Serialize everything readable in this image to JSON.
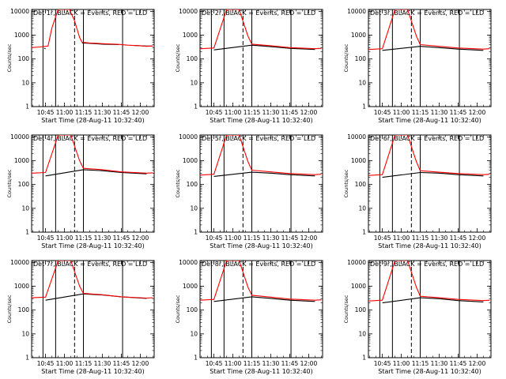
{
  "chart_data": [
    {
      "type": "line",
      "title": "Det 1r, BLACK = Events, RED = LLD",
      "xlabel": "Start Time (28-Aug-11 10:32:40)",
      "ylabel": "Counts/sec",
      "yscale": "log",
      "ylim": [
        1,
        12000
      ],
      "xlim": [
        "10:34",
        "12:11"
      ],
      "x_ticks": [
        "10:45",
        "11:00",
        "11:15",
        "11:30",
        "11:45",
        "12:00"
      ],
      "y_ticks": [
        "1",
        "10",
        "100",
        "1000",
        "10000"
      ],
      "series": [
        {
          "color": "#000000",
          "x": [
            "10:40",
            "10:44",
            "10:45",
            "10:45.6",
            "10:47",
            "10:48",
            "10:55",
            "11:03",
            "11:04",
            "11:12",
            "11:14",
            "11:18",
            "11:30",
            "11:43",
            "11:44",
            "11:55",
            "12:05",
            "12:10"
          ],
          "y": [
            null,
            280,
            270,
            null,
            null,
            1200,
            null,
            null,
            12000,
            null,
            470,
            460,
            420,
            400,
            null,
            370,
            350,
            350
          ]
        },
        {
          "color": "#ff0000",
          "x": [
            "10:34",
            "10:40",
            "10:45",
            "10:47",
            "10:50",
            "10:55",
            "11:00",
            "11:04",
            "11:08",
            "11:12",
            "11:14",
            "11:20",
            "11:30",
            "11:43",
            "11:50",
            "12:00",
            "12:05",
            "12:10"
          ],
          "y": [
            300,
            320,
            340,
            350,
            2000,
            12000,
            12000,
            12000,
            4000,
            800,
            500,
            470,
            440,
            410,
            380,
            360,
            340,
            350
          ]
        }
      ],
      "markers": {
        "solid_vlines": [
          "10:43",
          "10:53",
          "11:15",
          "11:46"
        ],
        "dashed_vlines": [
          "11:08"
        ],
        "gaps": [
          [
            "10:45",
            "10:47"
          ],
          [
            "10:55",
            "11:03"
          ],
          [
            "11:12",
            "11:14"
          ],
          [
            "11:44",
            "11:46"
          ]
        ]
      }
    },
    {
      "type": "line",
      "title": "Det 2r, BLACK = Events, RED = LLD",
      "xlabel": "Start Time (28-Aug-11 10:32:40)",
      "ylabel": "Counts/sec",
      "yscale": "log",
      "ylim": [
        1,
        12000
      ],
      "xlim": [
        "10:34",
        "12:11"
      ],
      "x_ticks": [
        "10:45",
        "11:00",
        "11:15",
        "11:30",
        "11:45",
        "12:00"
      ],
      "y_ticks": [
        "1",
        "10",
        "100",
        "1000",
        "10000"
      ],
      "series": [
        {
          "color": "#000000",
          "x": [
            "10:45",
            "11:15",
            "11:30",
            "11:45",
            "12:05"
          ],
          "y": [
            240,
            380,
            330,
            280,
            250
          ]
        },
        {
          "color": "#ff0000",
          "x": [
            "10:34",
            "10:45",
            "10:55",
            "11:05",
            "11:12",
            "11:15",
            "11:30",
            "11:45",
            "12:05",
            "12:10"
          ],
          "y": [
            270,
            290,
            12000,
            12000,
            900,
            420,
            360,
            300,
            270,
            280
          ]
        }
      ],
      "markers": {
        "solid_vlines": [
          "10:43",
          "10:53",
          "11:15",
          "11:46"
        ],
        "dashed_vlines": [
          "11:08"
        ]
      }
    },
    {
      "type": "line",
      "title": "Det 3r, BLACK = Events, RED = LLD",
      "xlabel": "Start Time (28-Aug-11 10:32:40)",
      "ylabel": "Counts/sec",
      "yscale": "log",
      "ylim": [
        1,
        12000
      ],
      "xlim": [
        "10:34",
        "12:11"
      ],
      "x_ticks": [
        "10:45",
        "11:00",
        "11:15",
        "11:30",
        "11:45",
        "12:00"
      ],
      "y_ticks": [
        "1",
        "10",
        "100",
        "1000",
        "10000"
      ],
      "series": [
        {
          "color": "#000000",
          "x": [
            "10:45",
            "11:15",
            "11:30",
            "11:45",
            "12:05"
          ],
          "y": [
            230,
            340,
            300,
            260,
            230
          ]
        },
        {
          "color": "#ff0000",
          "x": [
            "10:34",
            "10:45",
            "10:55",
            "11:05",
            "11:12",
            "11:15",
            "11:30",
            "11:45",
            "12:05",
            "12:10"
          ],
          "y": [
            250,
            270,
            12000,
            12000,
            900,
            400,
            340,
            290,
            260,
            270
          ]
        }
      ],
      "markers": {
        "solid_vlines": [
          "10:43",
          "10:53",
          "11:15",
          "11:46"
        ],
        "dashed_vlines": [
          "11:08"
        ]
      }
    },
    {
      "type": "line",
      "title": "Det 4r, BLACK = Events, RED = LLD",
      "xlabel": "Start Time (28-Aug-11 10:32:40)",
      "ylabel": "Counts/sec",
      "yscale": "log",
      "ylim": [
        1,
        12000
      ],
      "xlim": [
        "10:34",
        "12:11"
      ],
      "x_ticks": [
        "10:45",
        "11:00",
        "11:15",
        "11:30",
        "11:45",
        "12:00"
      ],
      "y_ticks": [
        "1",
        "10",
        "100",
        "1000",
        "10000"
      ],
      "series": [
        {
          "color": "#000000",
          "x": [
            "10:45",
            "11:15",
            "11:30",
            "11:45",
            "12:05"
          ],
          "y": [
            230,
            420,
            380,
            320,
            280
          ]
        },
        {
          "color": "#ff0000",
          "x": [
            "10:34",
            "10:45",
            "10:55",
            "11:05",
            "11:12",
            "11:15",
            "11:30",
            "11:45",
            "12:05",
            "12:10"
          ],
          "y": [
            300,
            320,
            12000,
            12000,
            1000,
            480,
            420,
            340,
            300,
            310
          ]
        }
      ],
      "markers": {
        "solid_vlines": [
          "10:43",
          "10:53",
          "11:15",
          "11:46"
        ],
        "dashed_vlines": [
          "11:08"
        ]
      }
    },
    {
      "type": "line",
      "title": "Det 5r, BLACK = Events, RED = LLD",
      "xlabel": "Start Time (28-Aug-11 10:32:40)",
      "ylabel": "Counts/sec",
      "yscale": "log",
      "ylim": [
        1,
        12000
      ],
      "xlim": [
        "10:34",
        "12:11"
      ],
      "x_ticks": [
        "10:45",
        "11:00",
        "11:15",
        "11:30",
        "11:45",
        "12:00"
      ],
      "y_ticks": [
        "1",
        "10",
        "100",
        "1000",
        "10000"
      ],
      "series": [
        {
          "color": "#000000",
          "x": [
            "10:45",
            "11:15",
            "11:30",
            "11:45",
            "12:05"
          ],
          "y": [
            220,
            330,
            300,
            260,
            230
          ]
        },
        {
          "color": "#ff0000",
          "x": [
            "10:34",
            "10:45",
            "10:55",
            "11:05",
            "11:12",
            "11:15",
            "11:30",
            "11:45",
            "12:05",
            "12:10"
          ],
          "y": [
            250,
            270,
            12000,
            12000,
            900,
            400,
            340,
            290,
            260,
            270
          ]
        }
      ],
      "markers": {
        "solid_vlines": [
          "10:43",
          "10:53",
          "11:15",
          "11:46"
        ],
        "dashed_vlines": [
          "11:08"
        ]
      }
    },
    {
      "type": "line",
      "title": "Det 6r, BLACK = Events, RED = LLD",
      "xlabel": "Start Time (28-Aug-11 10:32:40)",
      "ylabel": "Counts/sec",
      "yscale": "log",
      "ylim": [
        1,
        12000
      ],
      "xlim": [
        "10:34",
        "12:11"
      ],
      "x_ticks": [
        "10:45",
        "11:00",
        "11:15",
        "11:30",
        "11:45",
        "12:00"
      ],
      "y_ticks": [
        "1",
        "10",
        "100",
        "1000",
        "10000"
      ],
      "series": [
        {
          "color": "#000000",
          "x": [
            "10:45",
            "11:15",
            "11:30",
            "11:45",
            "12:05"
          ],
          "y": [
            200,
            320,
            300,
            260,
            230
          ]
        },
        {
          "color": "#ff0000",
          "x": [
            "10:34",
            "10:45",
            "10:55",
            "11:05",
            "11:12",
            "11:15",
            "11:30",
            "11:45",
            "12:05",
            "12:10"
          ],
          "y": [
            240,
            260,
            12000,
            12000,
            900,
            380,
            330,
            290,
            260,
            270
          ]
        }
      ],
      "markers": {
        "solid_vlines": [
          "10:43",
          "10:53",
          "11:15",
          "11:46"
        ],
        "dashed_vlines": [
          "11:08"
        ]
      }
    },
    {
      "type": "line",
      "title": "Det 7r, BLACK = Events, RED = LLD",
      "xlabel": "Start Time (28-Aug-11 10:32:40)",
      "ylabel": "Counts/sec",
      "yscale": "log",
      "ylim": [
        1,
        12000
      ],
      "xlim": [
        "10:34",
        "12:11"
      ],
      "x_ticks": [
        "10:45",
        "11:00",
        "11:15",
        "11:30",
        "11:45",
        "12:00"
      ],
      "y_ticks": [
        "1",
        "10",
        "100",
        "1000",
        "10000"
      ],
      "series": [
        {
          "color": "#000000",
          "x": [
            "10:45",
            "11:15",
            "11:30",
            "11:45",
            "12:05"
          ],
          "y": [
            260,
            480,
            430,
            360,
            310
          ]
        },
        {
          "color": "#ff0000",
          "x": [
            "10:34",
            "10:45",
            "10:55",
            "11:05",
            "11:12",
            "11:15",
            "11:30",
            "11:45",
            "12:05",
            "12:10"
          ],
          "y": [
            330,
            350,
            12000,
            12000,
            1000,
            500,
            440,
            360,
            320,
            330
          ]
        }
      ],
      "markers": {
        "solid_vlines": [
          "10:43",
          "10:53",
          "11:15",
          "11:46"
        ],
        "dashed_vlines": [
          "11:08"
        ]
      }
    },
    {
      "type": "line",
      "title": "Det 8r, BLACK = Events, RED = LLD",
      "xlabel": "Start Time (28-Aug-11 10:32:40)",
      "ylabel": "Counts/sec",
      "yscale": "log",
      "ylim": [
        1,
        12000
      ],
      "xlim": [
        "10:34",
        "12:11"
      ],
      "x_ticks": [
        "10:45",
        "11:00",
        "11:15",
        "11:30",
        "11:45",
        "12:00"
      ],
      "y_ticks": [
        "1",
        "10",
        "100",
        "1000",
        "10000"
      ],
      "series": [
        {
          "color": "#000000",
          "x": [
            "10:45",
            "11:15",
            "11:30",
            "11:45",
            "12:05"
          ],
          "y": [
            230,
            360,
            310,
            260,
            230
          ]
        },
        {
          "color": "#ff0000",
          "x": [
            "10:34",
            "10:45",
            "10:55",
            "11:05",
            "11:12",
            "11:15",
            "11:30",
            "11:45",
            "12:05",
            "12:10"
          ],
          "y": [
            260,
            280,
            12000,
            12000,
            900,
            420,
            350,
            290,
            260,
            270
          ]
        }
      ],
      "markers": {
        "solid_vlines": [
          "10:43",
          "10:53",
          "11:15",
          "11:46"
        ],
        "dashed_vlines": [
          "11:08"
        ]
      }
    },
    {
      "type": "line",
      "title": "Det 9r, BLACK = Events, RED = LLD",
      "xlabel": "Start Time (28-Aug-11 10:32:40)",
      "ylabel": "Counts/sec",
      "yscale": "log",
      "ylim": [
        1,
        12000
      ],
      "xlim": [
        "10:34",
        "12:11"
      ],
      "x_ticks": [
        "10:45",
        "11:00",
        "11:15",
        "11:30",
        "11:45",
        "12:00"
      ],
      "y_ticks": [
        "1",
        "10",
        "100",
        "1000",
        "10000"
      ],
      "series": [
        {
          "color": "#000000",
          "x": [
            "10:45",
            "11:15",
            "11:30",
            "11:45",
            "12:05"
          ],
          "y": [
            200,
            330,
            300,
            250,
            220
          ]
        },
        {
          "color": "#ff0000",
          "x": [
            "10:34",
            "10:45",
            "10:55",
            "11:05",
            "11:12",
            "11:15",
            "11:30",
            "11:45",
            "12:05",
            "12:10"
          ],
          "y": [
            240,
            260,
            12000,
            12000,
            900,
            380,
            330,
            280,
            250,
            260
          ]
        }
      ],
      "markers": {
        "solid_vlines": [
          "10:43",
          "10:53",
          "11:15",
          "11:46"
        ],
        "dashed_vlines": [
          "11:08"
        ]
      }
    }
  ]
}
